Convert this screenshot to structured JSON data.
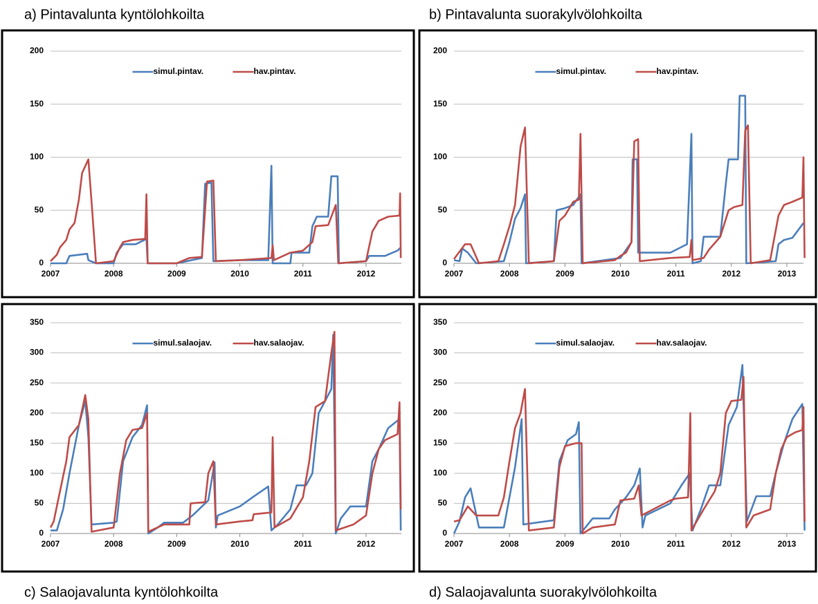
{
  "chart_data": [
    {
      "type": "line",
      "title": "a) Pintavalunta kyntölohkoilta",
      "xlim": [
        2007,
        2012.56
      ],
      "xticks": [
        2007,
        2008,
        2009,
        2010,
        2011,
        2012
      ],
      "ylim": [
        0,
        200
      ],
      "yticks": [
        0,
        50,
        100,
        150,
        200
      ],
      "grid": true,
      "legend": "upper center",
      "series": [
        {
          "name": "simul.pintav.",
          "color": "#4a7ebb",
          "x": [
            2007.0,
            2007.25,
            2007.3,
            2007.45,
            2007.58,
            2007.6,
            2007.72,
            2008.0,
            2008.05,
            2008.15,
            2008.35,
            2008.52,
            2008.54,
            2009.0,
            2009.4,
            2009.45,
            2009.55,
            2009.58,
            2010.0,
            2010.45,
            2010.5,
            2010.52,
            2010.8,
            2010.82,
            2011.1,
            2011.15,
            2011.22,
            2011.4,
            2011.45,
            2011.55,
            2011.57,
            2012.0,
            2012.05,
            2012.3,
            2012.5,
            2012.55
          ],
          "values": [
            0,
            0,
            7,
            8,
            9,
            3,
            0,
            0,
            10,
            18,
            18,
            23,
            0,
            0,
            5,
            75,
            76,
            2,
            3,
            3,
            92,
            0,
            0,
            10,
            10,
            35,
            44,
            44,
            82,
            82,
            0,
            2,
            7,
            7,
            12,
            15
          ]
        },
        {
          "name": "hav.pintav.",
          "color": "#be4b48",
          "x": [
            2007.0,
            2007.1,
            2007.15,
            2007.25,
            2007.3,
            2007.38,
            2007.45,
            2007.5,
            2007.6,
            2007.66,
            2007.72,
            2008.0,
            2008.1,
            2008.15,
            2008.3,
            2008.5,
            2008.52,
            2008.54,
            2009.0,
            2009.2,
            2009.4,
            2009.48,
            2009.58,
            2009.62,
            2010.0,
            2010.5,
            2010.52,
            2010.54,
            2010.8,
            2011.0,
            2011.15,
            2011.2,
            2011.4,
            2011.52,
            2011.56,
            2012.0,
            2012.1,
            2012.2,
            2012.35,
            2012.53,
            2012.54,
            2012.55
          ],
          "values": [
            2,
            8,
            15,
            22,
            32,
            38,
            60,
            85,
            98,
            50,
            0,
            2,
            15,
            20,
            22,
            23,
            65,
            0,
            0,
            5,
            6,
            77,
            78,
            2,
            3,
            5,
            17,
            3,
            10,
            12,
            20,
            35,
            36,
            55,
            0,
            2,
            30,
            40,
            44,
            45,
            66,
            5
          ]
        }
      ]
    },
    {
      "type": "line",
      "title": "b) Pintavalunta suorakylvölohkoilta",
      "xlim": [
        2007,
        2013.3
      ],
      "xticks": [
        2007,
        2008,
        2009,
        2010,
        2011,
        2012,
        2013
      ],
      "ylim": [
        0,
        200
      ],
      "yticks": [
        0,
        50,
        100,
        150,
        200
      ],
      "grid": true,
      "legend": "upper center",
      "series": [
        {
          "name": "simul.pintav.",
          "color": "#4a7ebb",
          "x": [
            2007.0,
            2007.1,
            2007.15,
            2007.25,
            2007.4,
            2007.9,
            2008.0,
            2008.1,
            2008.2,
            2008.28,
            2008.3,
            2008.8,
            2008.85,
            2009.0,
            2009.15,
            2009.28,
            2009.3,
            2010.0,
            2010.2,
            2010.22,
            2010.3,
            2010.32,
            2010.9,
            2011.2,
            2011.28,
            2011.3,
            2011.45,
            2011.5,
            2011.8,
            2011.9,
            2011.95,
            2012.12,
            2012.15,
            2012.25,
            2012.27,
            2012.8,
            2012.85,
            2012.95,
            2013.1,
            2013.3
          ],
          "values": [
            3,
            2,
            14,
            10,
            0,
            2,
            20,
            42,
            52,
            65,
            0,
            2,
            50,
            52,
            55,
            65,
            0,
            5,
            20,
            98,
            98,
            10,
            10,
            18,
            122,
            0,
            2,
            25,
            25,
            75,
            98,
            98,
            158,
            158,
            0,
            2,
            18,
            22,
            24,
            38
          ]
        },
        {
          "name": "hav.pintav.",
          "color": "#be4b48",
          "x": [
            2007.0,
            2007.2,
            2007.3,
            2007.45,
            2007.8,
            2007.9,
            2008.0,
            2008.1,
            2008.2,
            2008.28,
            2008.35,
            2008.8,
            2008.9,
            2009.0,
            2009.15,
            2009.25,
            2009.28,
            2009.32,
            2009.9,
            2010.0,
            2010.1,
            2010.2,
            2010.25,
            2010.32,
            2010.35,
            2010.9,
            2011.25,
            2011.28,
            2011.3,
            2011.5,
            2011.6,
            2011.8,
            2011.95,
            2012.05,
            2012.2,
            2012.25,
            2012.3,
            2012.35,
            2012.7,
            2012.85,
            2012.95,
            2013.1,
            2013.28,
            2013.3,
            2013.32
          ],
          "values": [
            4,
            18,
            18,
            0,
            2,
            18,
            35,
            55,
            110,
            128,
            0,
            2,
            40,
            45,
            58,
            60,
            122,
            0,
            3,
            7,
            10,
            20,
            115,
            117,
            2,
            5,
            6,
            22,
            3,
            5,
            13,
            25,
            50,
            53,
            55,
            125,
            130,
            0,
            3,
            45,
            55,
            58,
            62,
            100,
            5
          ]
        }
      ]
    },
    {
      "type": "line",
      "title": "c) Salaojavalunta kyntölohkoilta",
      "xlim": [
        2007,
        2012.56
      ],
      "xticks": [
        2007,
        2008,
        2009,
        2010,
        2011,
        2012
      ],
      "ylim": [
        0,
        350
      ],
      "yticks": [
        0,
        50,
        100,
        150,
        200,
        250,
        300,
        350
      ],
      "grid": true,
      "legend": "upper center",
      "series": [
        {
          "name": "simul.salaojav.",
          "color": "#4a7ebb",
          "x": [
            2007.0,
            2007.1,
            2007.2,
            2007.3,
            2007.45,
            2007.55,
            2007.6,
            2007.65,
            2008.0,
            2008.05,
            2008.15,
            2008.3,
            2008.45,
            2008.53,
            2008.55,
            2008.7,
            2008.8,
            2009.1,
            2009.25,
            2009.5,
            2009.6,
            2009.62,
            2009.65,
            2010.0,
            2010.2,
            2010.45,
            2010.5,
            2010.6,
            2010.8,
            2010.9,
            2011.05,
            2011.15,
            2011.25,
            2011.35,
            2011.45,
            2011.48,
            2011.52,
            2011.6,
            2011.75,
            2012.0,
            2012.1,
            2012.2,
            2012.35,
            2012.53,
            2012.55
          ],
          "values": [
            5,
            5,
            40,
            100,
            180,
            220,
            160,
            15,
            18,
            20,
            120,
            160,
            180,
            213,
            0,
            10,
            18,
            18,
            30,
            55,
            118,
            10,
            30,
            45,
            60,
            78,
            5,
            15,
            40,
            80,
            80,
            100,
            200,
            220,
            240,
            330,
            0,
            25,
            45,
            45,
            120,
            140,
            175,
            190,
            5
          ]
        },
        {
          "name": "hav.salaojav.",
          "color": "#be4b48",
          "x": [
            2007.0,
            2007.05,
            2007.1,
            2007.18,
            2007.25,
            2007.3,
            2007.45,
            2007.55,
            2007.6,
            2007.65,
            2008.0,
            2008.1,
            2008.2,
            2008.3,
            2008.45,
            2008.53,
            2008.55,
            2008.8,
            2009.0,
            2009.2,
            2009.22,
            2009.45,
            2009.5,
            2009.58,
            2009.62,
            2010.0,
            2010.2,
            2010.22,
            2010.5,
            2010.52,
            2010.55,
            2010.8,
            2011.0,
            2011.1,
            2011.2,
            2011.35,
            2011.45,
            2011.5,
            2011.52,
            2011.8,
            2012.0,
            2012.1,
            2012.2,
            2012.3,
            2012.5,
            2012.53,
            2012.55
          ],
          "values": [
            10,
            20,
            45,
            85,
            120,
            160,
            180,
            230,
            190,
            3,
            10,
            100,
            155,
            172,
            175,
            200,
            3,
            15,
            15,
            15,
            50,
            52,
            100,
            120,
            15,
            20,
            22,
            32,
            35,
            160,
            10,
            25,
            60,
            120,
            210,
            220,
            300,
            335,
            5,
            15,
            30,
            100,
            140,
            155,
            165,
            218,
            40
          ]
        }
      ]
    },
    {
      "type": "line",
      "title": "d) Salaojavalunta suorakylvölohkoilta",
      "xlim": [
        2007,
        2013.3
      ],
      "xticks": [
        2007,
        2008,
        2009,
        2010,
        2011,
        2012,
        2013
      ],
      "ylim": [
        0,
        350
      ],
      "yticks": [
        0,
        50,
        100,
        150,
        200,
        250,
        300,
        350
      ],
      "grid": true,
      "legend": "upper center",
      "series": [
        {
          "name": "simul.salaojav.",
          "color": "#4a7ebb",
          "x": [
            2007.0,
            2007.1,
            2007.2,
            2007.3,
            2007.45,
            2007.9,
            2008.1,
            2008.22,
            2008.25,
            2008.8,
            2008.9,
            2009.05,
            2009.2,
            2009.25,
            2009.28,
            2009.5,
            2009.8,
            2009.9,
            2010.1,
            2010.25,
            2010.35,
            2010.4,
            2010.45,
            2010.9,
            2011.1,
            2011.25,
            2011.3,
            2011.45,
            2011.6,
            2011.8,
            2011.95,
            2012.1,
            2012.2,
            2012.28,
            2012.45,
            2012.7,
            2012.8,
            2012.95,
            2013.1,
            2013.28,
            2013.32
          ],
          "values": [
            0,
            20,
            60,
            75,
            10,
            10,
            110,
            190,
            15,
            22,
            120,
            155,
            165,
            185,
            0,
            25,
            25,
            40,
            60,
            80,
            108,
            10,
            30,
            50,
            80,
            100,
            5,
            40,
            80,
            80,
            180,
            210,
            280,
            20,
            62,
            62,
            100,
            150,
            190,
            215,
            5
          ]
        },
        {
          "name": "hav.salaojav.",
          "color": "#be4b48",
          "x": [
            2007.0,
            2007.1,
            2007.25,
            2007.4,
            2007.8,
            2007.9,
            2008.0,
            2008.1,
            2008.2,
            2008.28,
            2008.35,
            2008.8,
            2008.9,
            2009.0,
            2009.2,
            2009.3,
            2009.32,
            2009.5,
            2009.9,
            2010.0,
            2010.25,
            2010.33,
            2010.38,
            2010.9,
            2011.0,
            2011.22,
            2011.26,
            2011.28,
            2011.5,
            2011.7,
            2011.8,
            2011.9,
            2012.0,
            2012.18,
            2012.22,
            2012.27,
            2012.4,
            2012.55,
            2012.7,
            2012.8,
            2012.9,
            2013.0,
            2013.15,
            2013.28,
            2013.3,
            2013.32
          ],
          "values": [
            20,
            22,
            45,
            30,
            30,
            60,
            120,
            175,
            200,
            240,
            5,
            10,
            110,
            145,
            150,
            150,
            0,
            10,
            15,
            55,
            58,
            80,
            30,
            55,
            58,
            60,
            200,
            5,
            40,
            70,
            100,
            200,
            220,
            222,
            260,
            10,
            30,
            35,
            40,
            100,
            140,
            160,
            168,
            172,
            210,
            20
          ]
        }
      ]
    }
  ]
}
